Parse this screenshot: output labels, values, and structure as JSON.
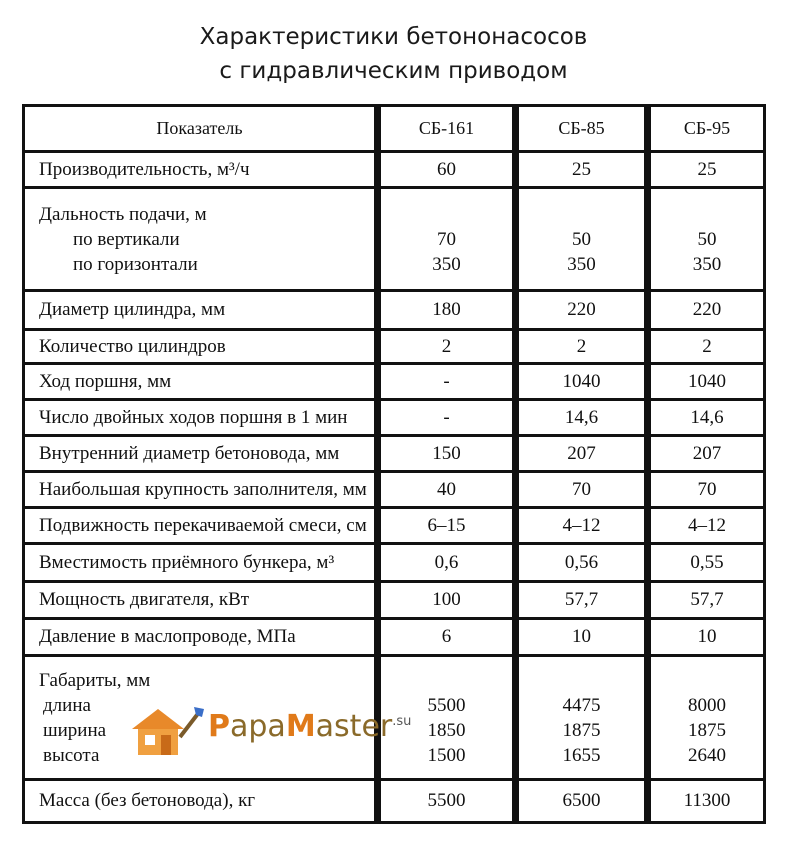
{
  "title": {
    "line1": "Характеристики бетононасосов",
    "line2": "с гидравлическим приводом"
  },
  "table": {
    "headers": [
      "Показатель",
      "СБ-161",
      "СБ-85",
      "СБ-95"
    ],
    "rows": [
      {
        "label": [
          "Производительность, м³/ч"
        ],
        "values": [
          [
            "60"
          ],
          [
            "25"
          ],
          [
            "25"
          ]
        ]
      },
      {
        "label": [
          "Дальность подачи, м",
          "по вертикали",
          "по горизонтали"
        ],
        "values": [
          [
            "",
            "70",
            "350"
          ],
          [
            "",
            "50",
            "350"
          ],
          [
            "",
            "50",
            "350"
          ]
        ]
      },
      {
        "label": [
          "Диаметр цилиндра, мм"
        ],
        "values": [
          [
            "180"
          ],
          [
            "220"
          ],
          [
            "220"
          ]
        ]
      },
      {
        "label": [
          "Количество цилиндров"
        ],
        "values": [
          [
            "2"
          ],
          [
            "2"
          ],
          [
            "2"
          ]
        ]
      },
      {
        "label": [
          "Ход поршня, мм"
        ],
        "values": [
          [
            "-"
          ],
          [
            "1040"
          ],
          [
            "1040"
          ]
        ]
      },
      {
        "label": [
          "Число двойных ходов поршня в 1 мин"
        ],
        "values": [
          [
            "-"
          ],
          [
            "14,6"
          ],
          [
            "14,6"
          ]
        ]
      },
      {
        "label": [
          "Внутренний диаметр бетоновода, мм"
        ],
        "values": [
          [
            "150"
          ],
          [
            "207"
          ],
          [
            "207"
          ]
        ]
      },
      {
        "label": [
          "Наибольшая крупность заполнителя, мм"
        ],
        "values": [
          [
            "40"
          ],
          [
            "70"
          ],
          [
            "70"
          ]
        ]
      },
      {
        "label": [
          "Подвижность перекачиваемой смеси, см"
        ],
        "values": [
          [
            "6–15"
          ],
          [
            "4–12"
          ],
          [
            "4–12"
          ]
        ]
      },
      {
        "label": [
          "Вместимость приёмного бункера, м³"
        ],
        "values": [
          [
            "0,6"
          ],
          [
            "0,56"
          ],
          [
            "0,55"
          ]
        ]
      },
      {
        "label": [
          "Мощность двигателя, кВт"
        ],
        "values": [
          [
            "100"
          ],
          [
            "57,7"
          ],
          [
            "57,7"
          ]
        ]
      },
      {
        "label": [
          "Давление в маслопроводе, МПа"
        ],
        "values": [
          [
            "6"
          ],
          [
            "10"
          ],
          [
            "10"
          ]
        ]
      },
      {
        "label": [
          "Габариты, мм",
          "длина",
          "ширина",
          "высота"
        ],
        "values": [
          [
            "",
            "5500",
            "1850",
            "1500"
          ],
          [
            "",
            "4475",
            "1875",
            "1655"
          ],
          [
            "",
            "8000",
            "1875",
            "2640"
          ]
        ]
      },
      {
        "label": [
          "Масса (без бетоновода), кг"
        ],
        "values": [
          [
            "5500"
          ],
          [
            "6500"
          ],
          [
            "11300"
          ]
        ]
      }
    ]
  },
  "watermark": {
    "prefix_cap": "P",
    "prefix": "apa",
    "mid_cap": "M",
    "suffix": "aster",
    "tld": ".su",
    "icon": "house-brush-icon",
    "colors": {
      "orange": "#e07a1a",
      "brown": "#8a6a2a"
    }
  }
}
